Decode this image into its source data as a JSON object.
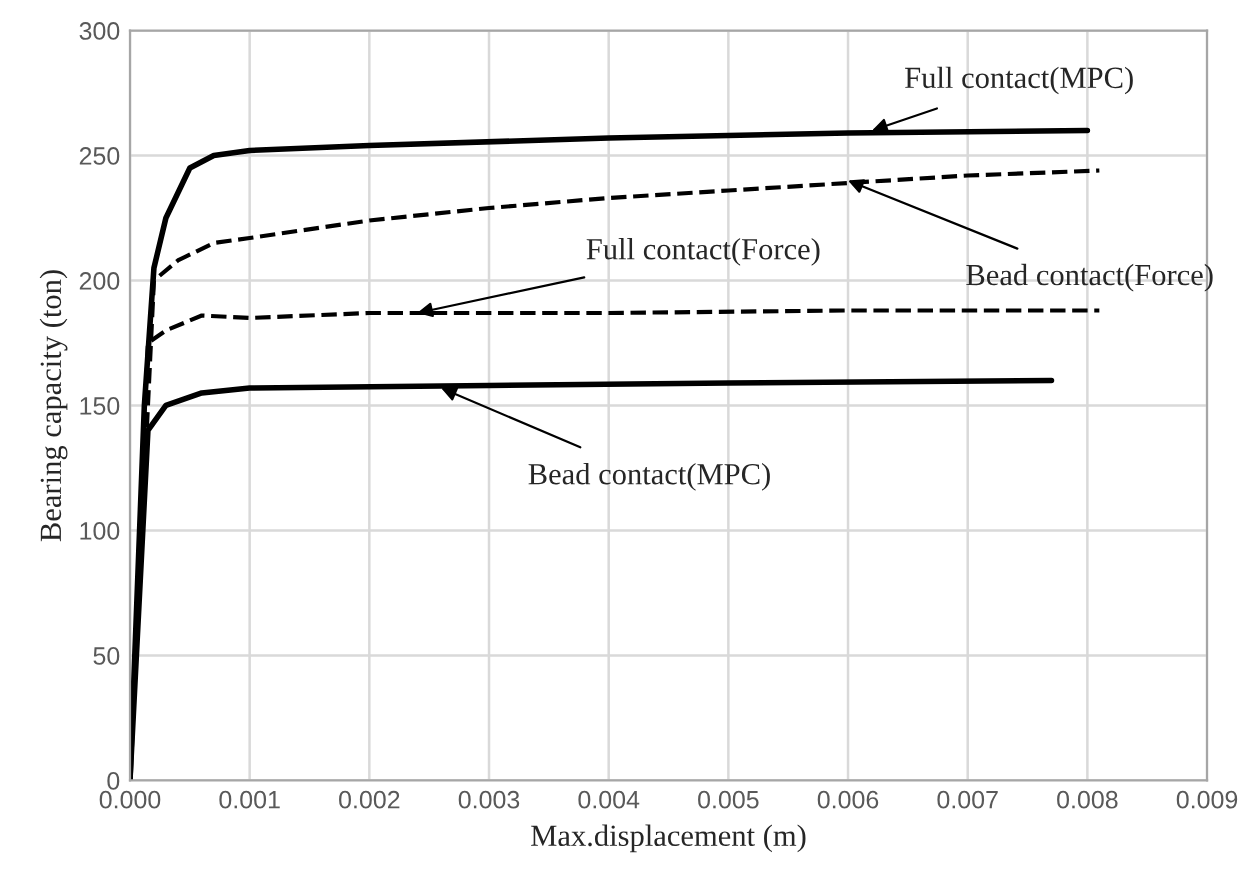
{
  "chart_data": {
    "type": "line",
    "xlabel": "Max.displacement (m)",
    "ylabel": "Bearing capacity (ton)",
    "xlim": [
      0,
      0.009
    ],
    "xticks": [
      {
        "value": 0,
        "label": "0.000"
      },
      0.001,
      0.002,
      0.003,
      0.004,
      0.005,
      0.006,
      0.007,
      0.008,
      0.009
    ],
    "ylim": [
      0,
      300
    ],
    "yticks": [
      0,
      50,
      100,
      150,
      200,
      250,
      300
    ],
    "grid": true,
    "legend": false,
    "marker": "none",
    "series": [
      {
        "color": "#000000",
        "line_style": "solid",
        "x": [
          0,
          0.00012,
          0.0002,
          0.0003,
          0.0005,
          0.0007,
          0.001,
          0.002,
          0.004,
          0.006,
          0.008
        ],
        "values": [
          0,
          150,
          205,
          225,
          245,
          250,
          252,
          254,
          257,
          259,
          260
        ]
      },
      {
        "color": "#000000",
        "line_style": "dashed",
        "x": [
          0,
          0.0002,
          0.0004,
          0.0007,
          0.001,
          0.002,
          0.003,
          0.004,
          0.005,
          0.006,
          0.007,
          0.0081
        ],
        "values": [
          0,
          200,
          208,
          215,
          217,
          224,
          229,
          233,
          236,
          239,
          242,
          244
        ]
      },
      {
        "color": "#000000",
        "line_style": "dashed",
        "x": [
          0,
          0.00015,
          0.0003,
          0.0006,
          0.001,
          0.002,
          0.004,
          0.006,
          0.0081
        ],
        "values": [
          0,
          175,
          180,
          186,
          185,
          187,
          187,
          188,
          188
        ]
      },
      {
        "color": "#000000",
        "line_style": "solid",
        "x": [
          0,
          0.00015,
          0.0003,
          0.0006,
          0.001,
          0.003,
          0.005,
          0.0077
        ],
        "values": [
          0,
          140,
          150,
          155,
          157,
          158,
          159,
          160
        ]
      }
    ],
    "annotations": [
      {
        "text": "Full contact(MPC)",
        "x": 0.0062,
        "y": 260
      },
      {
        "text": "Bead contact(Force)",
        "x": 0.006,
        "y": 240
      },
      {
        "text": "Full contact(Force)",
        "x": 0.0024,
        "y": 187
      },
      {
        "text": "Bead contact(MPC)",
        "x": 0.0026,
        "y": 157
      }
    ]
  }
}
